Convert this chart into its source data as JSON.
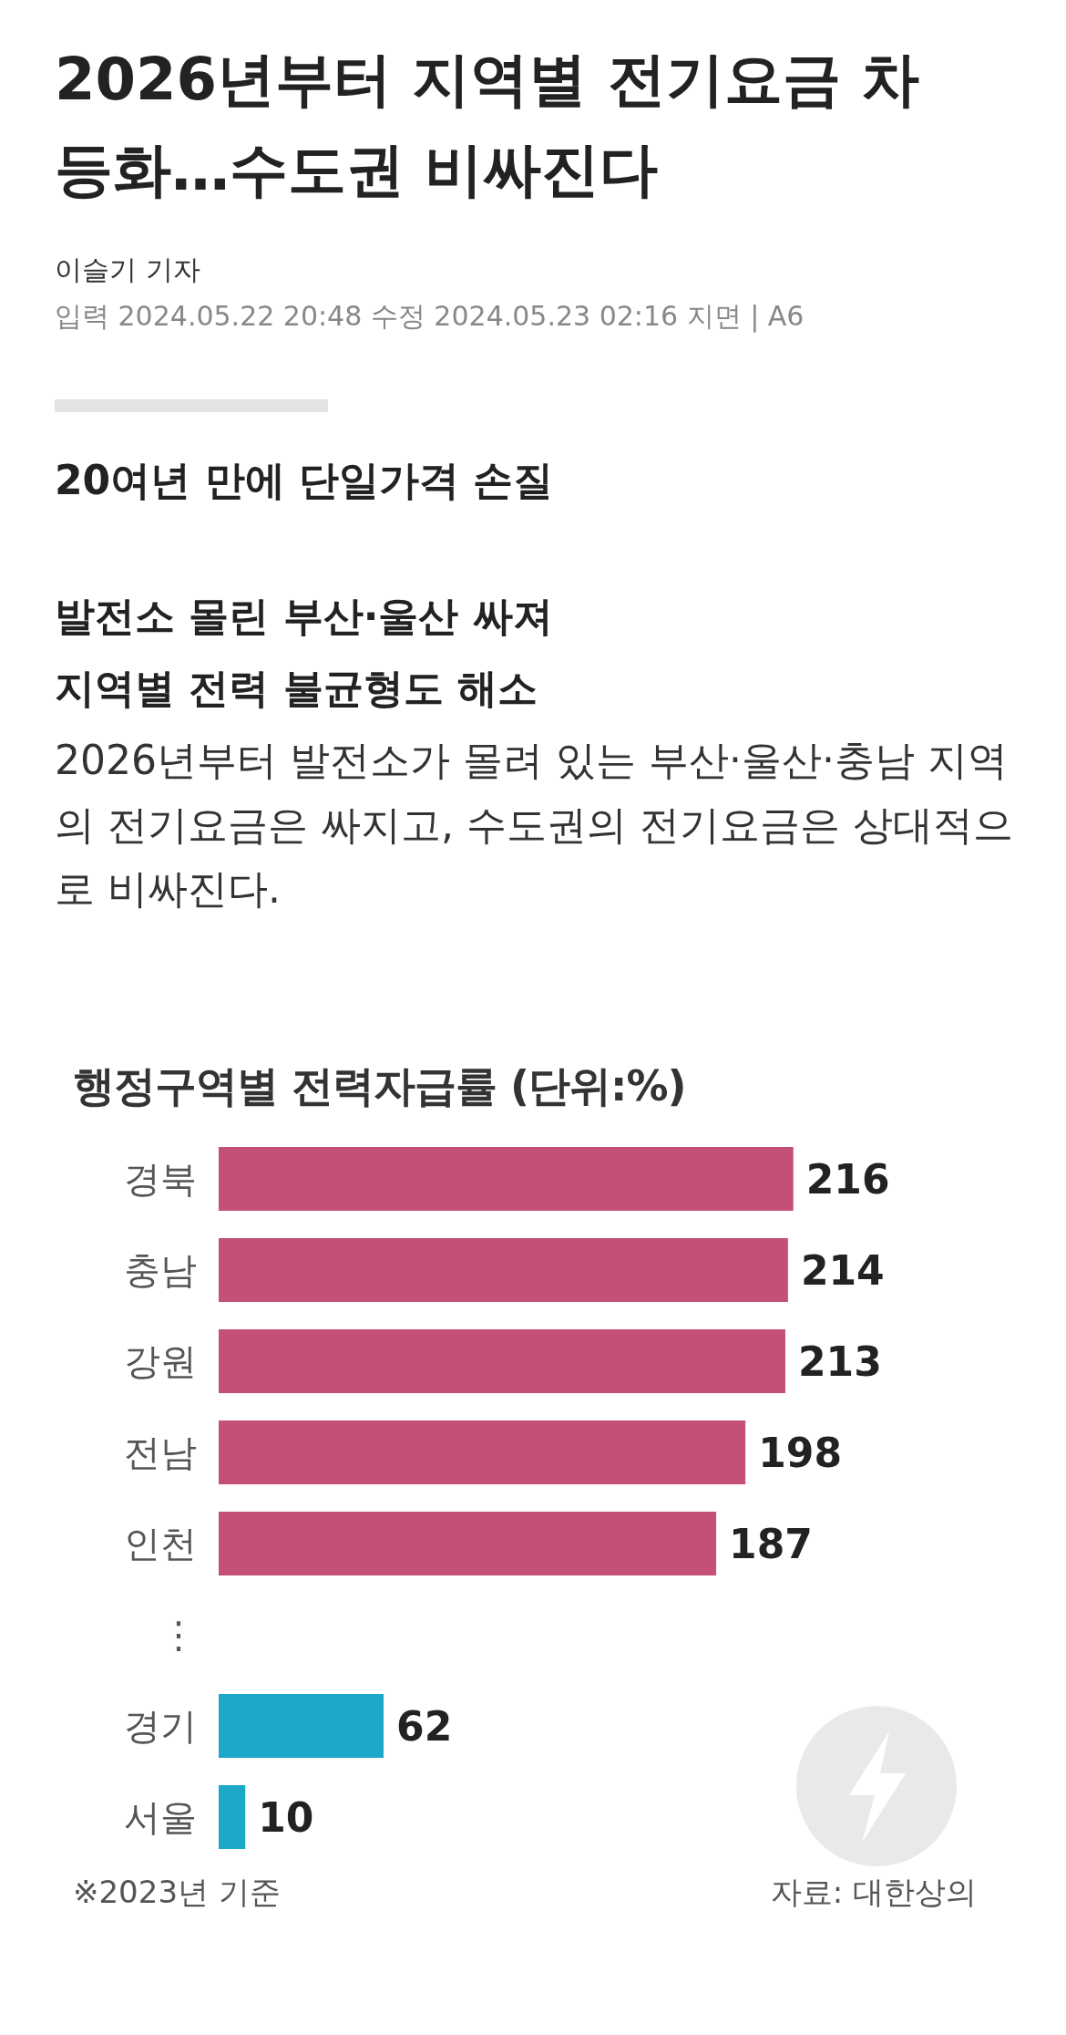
{
  "chart_data": {
    "type": "bar",
    "orientation": "horizontal",
    "title": "2026년부터 지역별 전기요금 차등화…수도권 비싸진다",
    "subtitle": "행정구역별 전력자급률 (단위:%)",
    "annotations": [
      "이슬기 기자",
      "입력 2024.05.22 20:48 수정 2024.05.23 02:16 지면 | A6",
      "20여년 만에 단일가격 손질",
      "발전소 몰린 부산·울산 싸져",
      "지역별 전력 불균형도 해소",
      "2026년부터 발전소가 몰려 있는 부산·울산·충남 지역의 전기요금은 싸지고, 수도권의 전기요금은 상대적으로 비싸진다.",
      "※2023년 기준",
      "자료: 대한상의"
    ],
    "categories": [
      "경북",
      "충남",
      "강원",
      "전남",
      "인천",
      "⋮",
      "경기",
      "서울"
    ],
    "values": [
      216,
      214,
      213,
      198,
      187,
      null,
      62,
      10
    ],
    "colors": [
      "#c4507a",
      "#c4507a",
      "#c4507a",
      "#c4507a",
      "#c4507a",
      "#c4507a",
      "#1ba8c9",
      "#1ba8c9"
    ],
    "data_labels": true
  }
}
